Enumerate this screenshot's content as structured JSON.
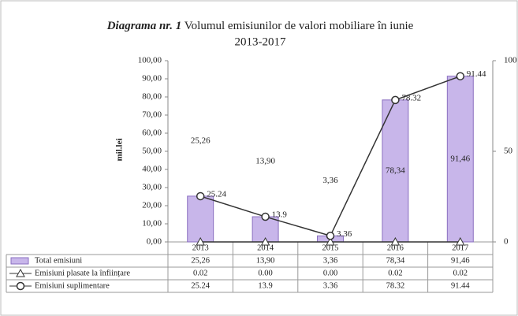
{
  "chart_data": {
    "type": "bar",
    "title_label": "Diagrama nr. 1",
    "title": [
      "Volumul emisiunilor de valori mobiliare în iunie",
      "2013-2017"
    ],
    "ylabel": "mil.lei",
    "categories": [
      "2013",
      "2014",
      "2015",
      "2016",
      "2017"
    ],
    "ylim": [
      0,
      100
    ],
    "yticks": [
      {
        "value": 0,
        "label": "0,00"
      },
      {
        "value": 10,
        "label": "10,00"
      },
      {
        "value": 20,
        "label": "20,00"
      },
      {
        "value": 30,
        "label": "30,00"
      },
      {
        "value": 40,
        "label": "40,00"
      },
      {
        "value": 50,
        "label": "50,00"
      },
      {
        "value": 60,
        "label": "60,00"
      },
      {
        "value": 70,
        "label": "70,00"
      },
      {
        "value": 80,
        "label": "80,00"
      },
      {
        "value": 90,
        "label": "90,00"
      },
      {
        "value": 100,
        "label": "100,00"
      }
    ],
    "y2lim": [
      0,
      100
    ],
    "y2ticks": [
      0,
      50,
      100
    ],
    "series": [
      {
        "name": "Total emisiuni",
        "type": "bar",
        "color": "#c8b6ea",
        "values": [
          25.26,
          13.9,
          3.36,
          78.34,
          91.46
        ],
        "value_labels": [
          "25,26",
          "13,90",
          "3,36",
          "78,34",
          "91,46"
        ]
      },
      {
        "name": "Emisiuni plasate la înființare",
        "type": "line",
        "axis": "y2",
        "marker": "triangle",
        "color": "#333333",
        "values": [
          0.02,
          0.0,
          0.0,
          0.02,
          0.02
        ],
        "value_labels": [
          "0.02",
          "0.00",
          "0.00",
          "0.02",
          "0.02"
        ]
      },
      {
        "name": "Emisiuni suplimentare",
        "type": "line",
        "axis": "y2",
        "marker": "circle",
        "color": "#333333",
        "values": [
          25.24,
          13.9,
          3.36,
          78.32,
          91.44
        ],
        "value_labels": [
          "25.24",
          "13.9",
          "3.36",
          "78.32",
          "91.44"
        ]
      }
    ]
  }
}
